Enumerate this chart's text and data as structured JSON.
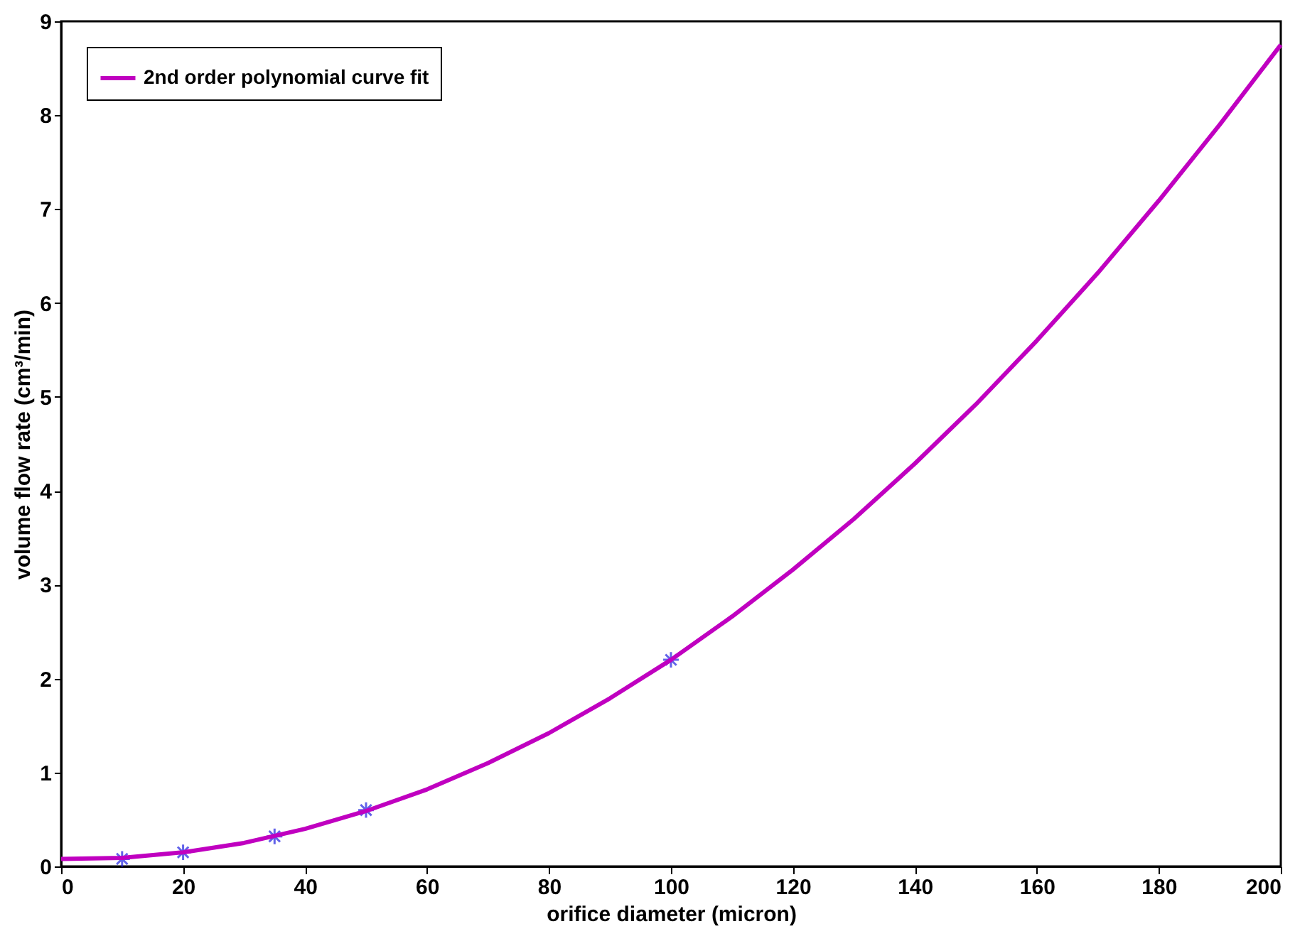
{
  "chart_data": {
    "type": "scatter",
    "xlabel": "orifice diameter (micron)",
    "ylabel": "volume flow rate (cm³/min)",
    "xlim": [
      0,
      200
    ],
    "xticks": [
      0,
      20,
      40,
      60,
      80,
      100,
      120,
      140,
      160,
      180,
      200
    ],
    "ylim": [
      0,
      9
    ],
    "yticks": [
      0,
      1,
      2,
      3,
      4,
      5,
      6,
      7,
      8,
      9
    ],
    "grid": false,
    "legend": "top left",
    "series": [
      {
        "color": "#2020e0",
        "marker": "cross",
        "x": [
          10,
          20,
          35,
          50,
          100
        ],
        "values": [
          0.08,
          0.15,
          0.32,
          0.6,
          2.2
        ]
      },
      {
        "type": "line",
        "name": "2nd order polynomial curve fit",
        "color": "#c000c0",
        "marker": "none",
        "line_style": "solid",
        "x": [
          0,
          10,
          20,
          30,
          40,
          50,
          60,
          70,
          80,
          90,
          100,
          110,
          120,
          130,
          140,
          150,
          160,
          170,
          180,
          190,
          200
        ],
        "values": [
          0.08,
          0.09,
          0.15,
          0.25,
          0.4,
          0.59,
          0.82,
          1.1,
          1.42,
          1.79,
          2.2,
          2.66,
          3.16,
          3.7,
          4.29,
          4.92,
          5.6,
          6.32,
          7.09,
          7.9,
          8.75
        ]
      }
    ]
  }
}
